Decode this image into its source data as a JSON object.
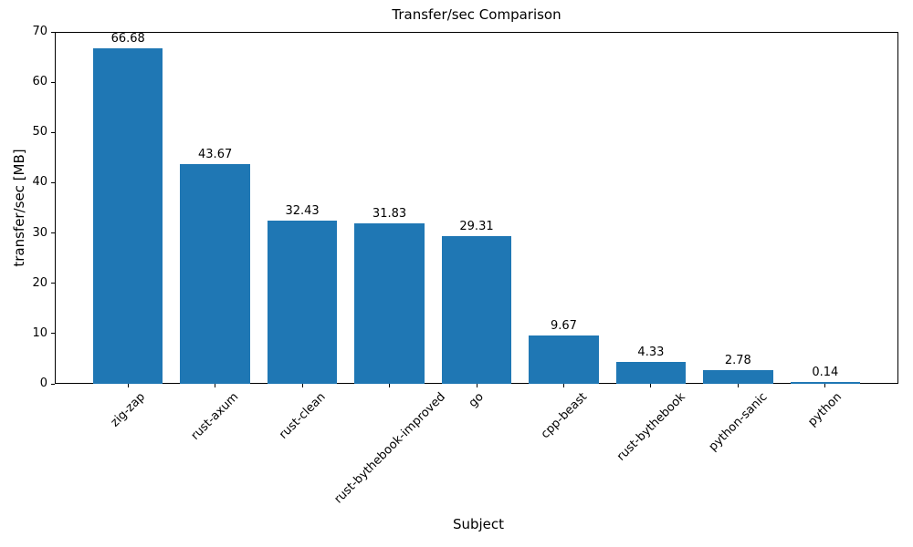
{
  "chart_data": {
    "type": "bar",
    "title": "Transfer/sec Comparison",
    "xlabel": "Subject",
    "ylabel": "transfer/sec [MB]",
    "categories": [
      "zig-zap",
      "rust-axum",
      "rust-clean",
      "rust-bythebook-improved",
      "go",
      "cpp-beast",
      "rust-bythebook",
      "python-sanic",
      "python"
    ],
    "values": [
      66.68,
      43.67,
      32.43,
      31.83,
      29.31,
      9.67,
      4.33,
      2.78,
      0.14
    ],
    "value_labels": [
      "66.68",
      "43.67",
      "32.43",
      "31.83",
      "29.31",
      "9.67",
      "4.33",
      "2.78",
      "0.14"
    ],
    "ylim": [
      0,
      70
    ],
    "yticks": [
      0,
      10,
      20,
      30,
      40,
      50,
      60,
      70
    ],
    "xtick_rotation_deg": 45,
    "grid": false,
    "legend": "none",
    "bar_color": "#1f77b4",
    "axis_color": "#000000",
    "text_color": "#000000",
    "background_color": "#ffffff"
  }
}
